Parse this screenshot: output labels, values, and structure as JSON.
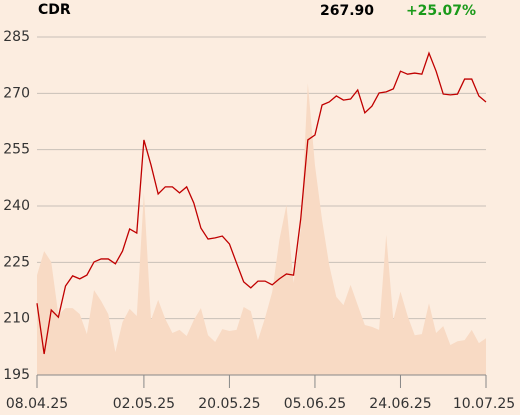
{
  "chart_data": {
    "type": "line",
    "title": "CDR",
    "price": "267.90",
    "change": "+25.07%",
    "change_color": "#1a9a1a",
    "x": [
      0,
      1,
      2,
      3,
      4,
      5,
      6,
      7,
      8,
      9,
      10,
      11,
      12,
      13,
      14,
      15,
      16,
      17,
      18,
      19,
      20,
      21,
      22,
      23,
      24,
      25,
      26,
      27,
      28,
      29,
      30,
      31,
      32,
      33,
      34,
      35,
      36,
      37,
      38,
      39,
      40,
      41,
      42,
      43,
      44,
      45,
      46,
      47,
      48,
      49,
      50,
      51,
      52,
      53,
      54,
      55,
      56,
      57,
      58,
      59,
      60,
      61,
      62,
      63
    ],
    "series": [
      {
        "kind": "area",
        "color": "#f8dac4",
        "values": [
          221.6,
          228.0,
          225.1,
          211.0,
          212.8,
          212.8,
          211.2,
          205.9,
          217.6,
          214.7,
          211.2,
          201.1,
          209.1,
          212.6,
          210.7,
          243.5,
          209.6,
          215.0,
          209.9,
          206.2,
          207.0,
          205.4,
          209.6,
          212.8,
          205.6,
          203.8,
          207.2,
          206.7,
          207.0,
          213.1,
          212.0,
          204.3,
          210.2,
          217.1,
          230.9,
          240.3,
          219.5,
          233.6,
          272.7,
          250.9,
          236.3,
          224.3,
          215.8,
          213.6,
          219.0,
          213.6,
          208.3,
          207.8,
          207.0,
          232.3,
          209.6,
          217.2,
          210.7,
          205.6,
          205.9,
          214.1,
          206.2,
          208.0,
          203.0,
          204.0,
          204.3,
          207.0,
          203.5,
          204.8
        ]
      },
      {
        "kind": "line",
        "color": "#c00000",
        "values": [
          214.1,
          200.6,
          212.3,
          210.4,
          218.7,
          221.4,
          220.6,
          221.6,
          225.1,
          225.9,
          225.9,
          224.6,
          228.0,
          233.9,
          232.8,
          257.6,
          250.9,
          243.2,
          245.1,
          245.1,
          243.5,
          245.1,
          240.8,
          234.1,
          231.2,
          231.5,
          232.0,
          229.9,
          224.8,
          219.8,
          218.2,
          220.0,
          220.0,
          219.0,
          220.6,
          221.9,
          221.6,
          236.5,
          257.6,
          258.9,
          266.9,
          267.7,
          269.3,
          268.2,
          268.5,
          270.9,
          264.8,
          266.6,
          270.1,
          270.4,
          271.2,
          275.9,
          275.1,
          275.4,
          275.1,
          280.7,
          275.9,
          269.8,
          269.6,
          269.8,
          273.8,
          273.8,
          269.3,
          267.7
        ]
      }
    ],
    "xlim": [
      0,
      63
    ],
    "xticks": [
      {
        "value": 0,
        "label": "08.04.25"
      },
      {
        "value": 15,
        "label": "02.05.25"
      },
      {
        "value": 27,
        "label": "20.05.25"
      },
      {
        "value": 39,
        "label": "05.06.25"
      },
      {
        "value": 51,
        "label": "24.06.25"
      },
      {
        "value": 63,
        "label": "10.07.25"
      }
    ],
    "ylim": [
      195,
      285
    ],
    "yticks": [
      195,
      210,
      225,
      240,
      255,
      270,
      285
    ],
    "grid": true
  }
}
